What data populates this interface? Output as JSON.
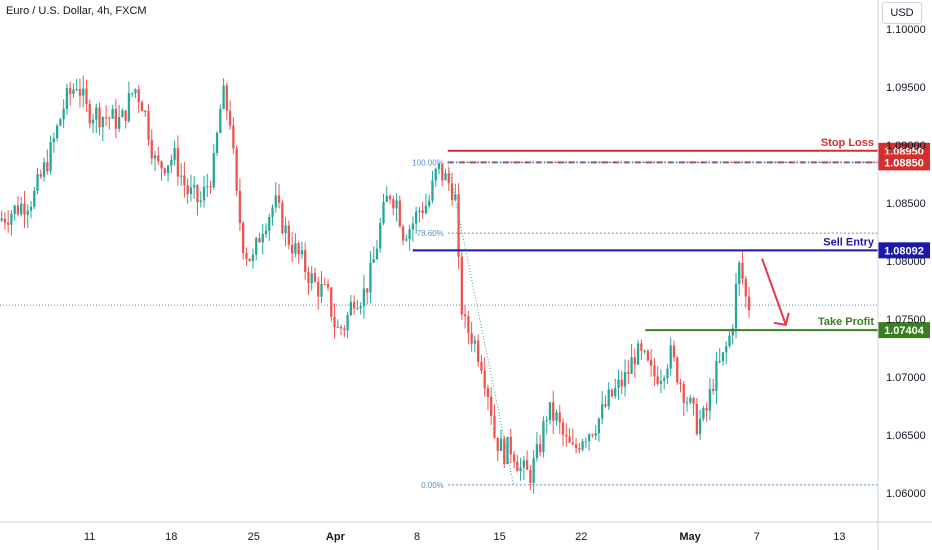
{
  "chart_title": "Euro / U.S. Dollar, 4h, FXCM",
  "currency_label": "USD",
  "colors": {
    "up": "#26a69a",
    "down": "#ef5350",
    "stop_loss": "#d32f2f",
    "sell_entry": "#1a1aa8",
    "take_profit": "#3b7d23",
    "fib": "#5b8ec9",
    "arrow": "#e53945"
  },
  "chart_data": {
    "type": "candlestick",
    "y_axis": {
      "ylim": [
        1.0575,
        1.1025
      ],
      "ticks": [
        1.06,
        1.065,
        1.07,
        1.075,
        1.08,
        1.085,
        1.09,
        1.095,
        1.1
      ],
      "tick_labels": [
        "1.06000",
        "1.06500",
        "1.07000",
        "1.07500",
        "1.08000",
        "1.08500",
        "1.09000",
        "1.09500",
        "1.10000"
      ],
      "position": "right"
    },
    "x_axis": {
      "labels": [
        "11",
        "18",
        "25",
        "Apr",
        "8",
        "15",
        "22",
        "May",
        "7",
        "13"
      ],
      "label_positions": [
        0.102,
        0.195,
        0.289,
        0.382,
        0.475,
        0.569,
        0.662,
        0.786,
        0.862,
        0.956
      ]
    },
    "levels": [
      {
        "name": "Stop Loss",
        "value": 1.0895,
        "label": "1.08950",
        "color_key": "stop_loss",
        "style": "solid"
      },
      {
        "value": 1.0885,
        "label": "1.08850",
        "color_key": "stop_loss",
        "style": "dash-dot"
      },
      {
        "name": "Sell Entry",
        "value": 1.08092,
        "label": "1.08092",
        "color_key": "sell_entry",
        "style": "solid"
      },
      {
        "name": "Take Profit",
        "value": 1.07404,
        "label": "1.07404",
        "color_key": "take_profit",
        "style": "solid"
      }
    ],
    "fibonacci": [
      {
        "label": "100.00%",
        "value": 1.0885
      },
      {
        "label": "78.60%",
        "value": 1.0824
      },
      {
        "label": "0.00%",
        "value": 1.0607
      }
    ],
    "current_price_line": 1.0762,
    "anchor_points": [
      [
        0.0,
        1.0835
      ],
      [
        0.02,
        1.0845
      ],
      [
        0.04,
        1.0855
      ],
      [
        0.06,
        1.0895
      ],
      [
        0.075,
        1.0935
      ],
      [
        0.09,
        1.0955
      ],
      [
        0.1,
        1.093
      ],
      [
        0.12,
        1.0925
      ],
      [
        0.14,
        1.092
      ],
      [
        0.155,
        1.095
      ],
      [
        0.165,
        1.0935
      ],
      [
        0.18,
        1.088
      ],
      [
        0.2,
        1.089
      ],
      [
        0.215,
        1.086
      ],
      [
        0.23,
        1.085
      ],
      [
        0.245,
        1.088
      ],
      [
        0.255,
        1.0945
      ],
      [
        0.265,
        1.092
      ],
      [
        0.27,
        1.086
      ],
      [
        0.28,
        1.081
      ],
      [
        0.29,
        1.08
      ],
      [
        0.3,
        1.083
      ],
      [
        0.315,
        1.085
      ],
      [
        0.33,
        1.082
      ],
      [
        0.345,
        1.08
      ],
      [
        0.36,
        1.078
      ],
      [
        0.375,
        1.077
      ],
      [
        0.385,
        1.074
      ],
      [
        0.395,
        1.0745
      ],
      [
        0.405,
        1.077
      ],
      [
        0.415,
        1.077
      ],
      [
        0.425,
        1.079
      ],
      [
        0.435,
        1.083
      ],
      [
        0.445,
        1.086
      ],
      [
        0.455,
        1.085
      ],
      [
        0.46,
        1.0825
      ],
      [
        0.47,
        1.083
      ],
      [
        0.48,
        1.0845
      ],
      [
        0.49,
        1.085
      ],
      [
        0.5,
        1.088
      ],
      [
        0.51,
        1.087
      ],
      [
        0.52,
        1.086
      ],
      [
        0.525,
        1.078
      ],
      [
        0.53,
        1.0745
      ],
      [
        0.54,
        1.0735
      ],
      [
        0.55,
        1.0715
      ],
      [
        0.56,
        1.068
      ],
      [
        0.565,
        1.065
      ],
      [
        0.575,
        1.0635
      ],
      [
        0.585,
        1.064
      ],
      [
        0.595,
        1.062
      ],
      [
        0.605,
        1.0615
      ],
      [
        0.615,
        1.0635
      ],
      [
        0.625,
        1.067
      ],
      [
        0.635,
        1.0665
      ],
      [
        0.645,
        1.0645
      ],
      [
        0.655,
        1.0635
      ],
      [
        0.665,
        1.065
      ],
      [
        0.675,
        1.0655
      ],
      [
        0.685,
        1.0665
      ],
      [
        0.695,
        1.068
      ],
      [
        0.705,
        1.069
      ],
      [
        0.715,
        1.07
      ],
      [
        0.725,
        1.072
      ],
      [
        0.735,
        1.0715
      ],
      [
        0.745,
        1.07
      ],
      [
        0.755,
        1.0705
      ],
      [
        0.765,
        1.072
      ],
      [
        0.775,
        1.07
      ],
      [
        0.785,
        1.068
      ],
      [
        0.795,
        1.066
      ],
      [
        0.805,
        1.0665
      ],
      [
        0.815,
        1.07
      ],
      [
        0.825,
        1.0715
      ],
      [
        0.835,
        1.074
      ],
      [
        0.84,
        1.0775
      ],
      [
        0.845,
        1.08
      ],
      [
        0.85,
        1.077
      ],
      [
        0.855,
        1.0762
      ]
    ]
  }
}
